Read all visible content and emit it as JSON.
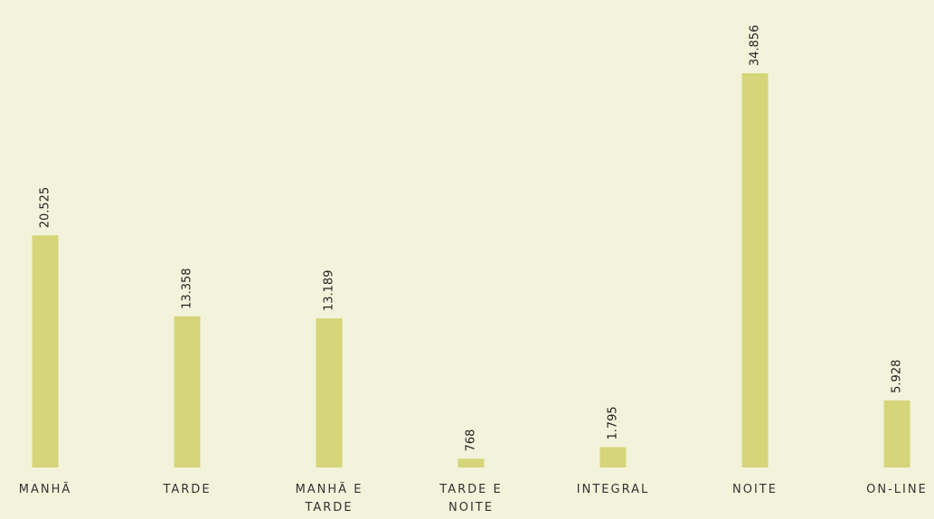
{
  "chart_data": {
    "type": "bar",
    "categories": [
      "MANHÃ",
      "TARDE",
      "MANHÃ E TARDE",
      "TARDE E NOITE",
      "INTEGRAL",
      "NOITE",
      "ON-LINE"
    ],
    "values": [
      20525,
      13358,
      13189,
      768,
      1795,
      34856,
      5928
    ],
    "value_labels": [
      "20.525",
      "13.358",
      "13.189",
      "768",
      "1.795",
      "34.856",
      "5.928"
    ],
    "color": "#d6d57a"
  }
}
